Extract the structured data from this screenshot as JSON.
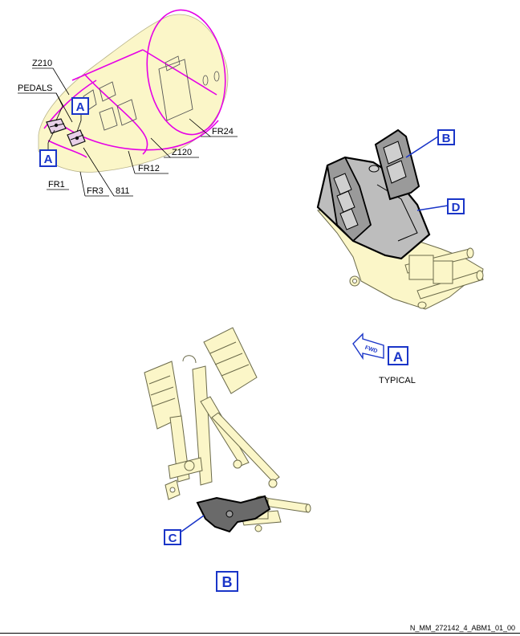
{
  "colors": {
    "callout_blue": "#1a35c8",
    "frame_magenta": "#e600e6",
    "part_fill": "#fbf6c8",
    "part_outline": "#6b6a4a",
    "dark_part": "#4a4a4a"
  },
  "fuselage": {
    "labels": {
      "z210": "Z210",
      "pedals": "PEDALS",
      "fr24": "FR24",
      "z120": "Z120",
      "fr12": "FR12",
      "fr1": "FR1",
      "fr3": "FR3",
      "n811": "811"
    },
    "callout_upper": "A",
    "callout_lower": "A"
  },
  "detail_a": {
    "callout_b": "B",
    "callout_d": "D",
    "fwd_arrow_text": "FWD",
    "view_letter": "A",
    "view_caption": "TYPICAL"
  },
  "detail_b": {
    "callout_c": "C",
    "view_letter": "B"
  },
  "footer": {
    "reference": "N_MM_272142_4_ABM1_01_00"
  }
}
